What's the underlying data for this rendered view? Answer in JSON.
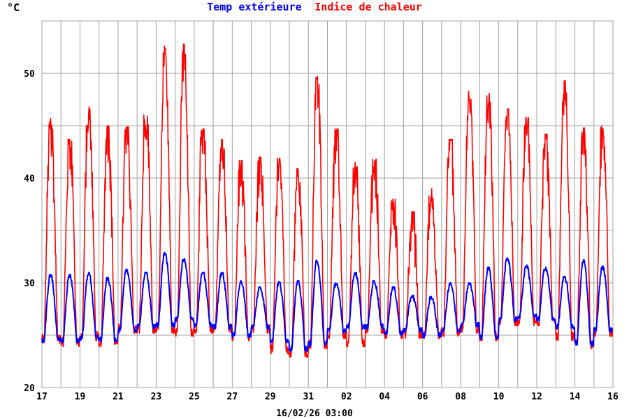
{
  "chart_data": {
    "type": "line",
    "unit_label": "°C",
    "timestamp": "16/02/26 03:00",
    "ylim": [
      20,
      55
    ],
    "y_ticks": [
      20,
      30,
      40,
      50
    ],
    "x_tick_labels": [
      "17",
      "19",
      "21",
      "23",
      "25",
      "27",
      "29",
      "31",
      "02",
      "04",
      "06",
      "08",
      "10",
      "12",
      "14",
      "16"
    ],
    "grid": true,
    "legend": {
      "placement": "top",
      "entries": [
        {
          "label": "Temp extérieure",
          "color": "#0000ff"
        },
        {
          "label": "Indice de chaleur",
          "color": "#ff0000"
        }
      ]
    },
    "days": [
      "17",
      "18",
      "19",
      "20",
      "21",
      "22",
      "23",
      "24",
      "25",
      "26",
      "27",
      "28",
      "29",
      "30",
      "31",
      "01",
      "02",
      "03",
      "04",
      "05",
      "06",
      "07",
      "08",
      "09",
      "10",
      "11",
      "12",
      "13",
      "14",
      "15"
    ],
    "series": [
      {
        "name": "Temp extérieure",
        "color": "#0000ff",
        "daily_min": [
          24.5,
          24.5,
          24.8,
          24.6,
          25.5,
          25.8,
          26.0,
          26.5,
          26.0,
          25.8,
          25.0,
          25.8,
          24.5,
          23.7,
          24.2,
          25.5,
          25.8,
          25.8,
          25.2,
          25.5,
          25.0,
          25.5,
          26.0,
          24.8,
          26.5,
          26.8,
          26.5,
          25.8,
          24.2,
          25.5
        ],
        "daily_max": [
          30.8,
          30.8,
          31.0,
          30.5,
          31.3,
          31.0,
          32.9,
          32.3,
          31.0,
          31.0,
          30.2,
          29.6,
          30.1,
          30.2,
          32.2,
          30.0,
          31.0,
          30.2,
          29.6,
          28.8,
          28.7,
          30.0,
          30.0,
          31.5,
          32.4,
          31.7,
          31.5,
          30.6,
          32.2,
          31.6
        ]
      },
      {
        "name": "Indice de chaleur",
        "color": "#ff0000",
        "daily_min": [
          24.5,
          24.2,
          24.8,
          24.2,
          25.5,
          25.5,
          25.5,
          25.2,
          25.5,
          25.5,
          24.8,
          25.5,
          23.5,
          23.2,
          24.0,
          25.0,
          24.2,
          25.5,
          25.0,
          25.0,
          25.0,
          25.2,
          25.5,
          24.8,
          26.2,
          26.2,
          26.2,
          24.8,
          24.0,
          25.2
        ],
        "daily_max": [
          45.7,
          43.7,
          46.8,
          45.0,
          44.9,
          46.2,
          52.6,
          52.8,
          44.7,
          43.7,
          41.7,
          42.0,
          41.9,
          40.9,
          49.7,
          44.7,
          41.5,
          41.8,
          38.0,
          36.8,
          39.0,
          43.7,
          48.3,
          48.1,
          46.6,
          45.8,
          44.2,
          49.3,
          44.8,
          45.0
        ]
      }
    ]
  }
}
